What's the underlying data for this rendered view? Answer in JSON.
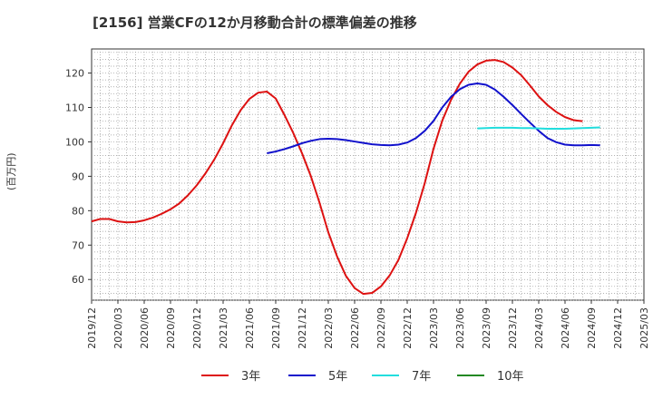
{
  "chart_data": {
    "type": "line",
    "title": "[2156]  営業CFの12か月移動合計の標準偏差の推移",
    "ylabel": "(百万円)",
    "xlabel": "",
    "ylim": [
      54,
      127
    ],
    "yticks": [
      60,
      70,
      80,
      90,
      100,
      110,
      120
    ],
    "x_ticks": [
      "2019/12",
      "2020/03",
      "2020/06",
      "2020/09",
      "2020/12",
      "2021/03",
      "2021/06",
      "2021/09",
      "2021/12",
      "2022/03",
      "2022/06",
      "2022/09",
      "2022/12",
      "2023/03",
      "2023/06",
      "2023/09",
      "2023/12",
      "2024/03",
      "2024/06",
      "2024/09",
      "2024/12",
      "2025/03"
    ],
    "grid": true,
    "legend_position": "bottom",
    "series": [
      {
        "name": "3年",
        "color": "#dd1111",
        "start": "2019/12",
        "values": [
          76.9,
          77.6,
          77.6,
          76.9,
          76.6,
          76.7,
          77.2,
          78.0,
          79.1,
          80.4,
          82.1,
          84.5,
          87.4,
          90.9,
          94.9,
          99.6,
          104.8,
          109.2,
          112.5,
          114.3,
          114.6,
          112.6,
          107.8,
          102.6,
          96.7,
          90.1,
          82.3,
          73.7,
          66.7,
          61.1,
          57.5,
          55.8,
          56.1,
          58.0,
          61.2,
          65.7,
          72.0,
          79.4,
          88.0,
          98.0,
          106.2,
          112.2,
          116.9,
          120.4,
          122.5,
          123.6,
          123.8,
          123.2,
          121.6,
          119.4,
          116.4,
          113.2,
          110.7,
          108.7,
          107.2,
          106.3,
          106.0
        ]
      },
      {
        "name": "5年",
        "color": "#1111cc",
        "start": "2021/08",
        "values": [
          96.7,
          97.2,
          97.9,
          98.7,
          99.6,
          100.3,
          100.8,
          100.9,
          100.8,
          100.5,
          100.1,
          99.7,
          99.3,
          99.1,
          99.0,
          99.2,
          99.8,
          101.1,
          103.2,
          106.1,
          110.0,
          113.1,
          115.3,
          116.6,
          117.0,
          116.6,
          115.2,
          113.1,
          110.7,
          108.1,
          105.6,
          103.2,
          101.1,
          99.9,
          99.2,
          99.0,
          99.0,
          99.1,
          99.0
        ]
      },
      {
        "name": "7年",
        "color": "#22dddd",
        "start": "2023/08",
        "values": [
          103.9,
          104.0,
          104.1,
          104.1,
          104.1,
          104.0,
          104.0,
          103.9,
          103.8,
          103.8,
          103.8,
          103.9,
          104.0,
          104.1,
          104.2
        ]
      },
      {
        "name": "10年",
        "color": "#228822",
        "start": "2024/09",
        "values": []
      }
    ]
  }
}
